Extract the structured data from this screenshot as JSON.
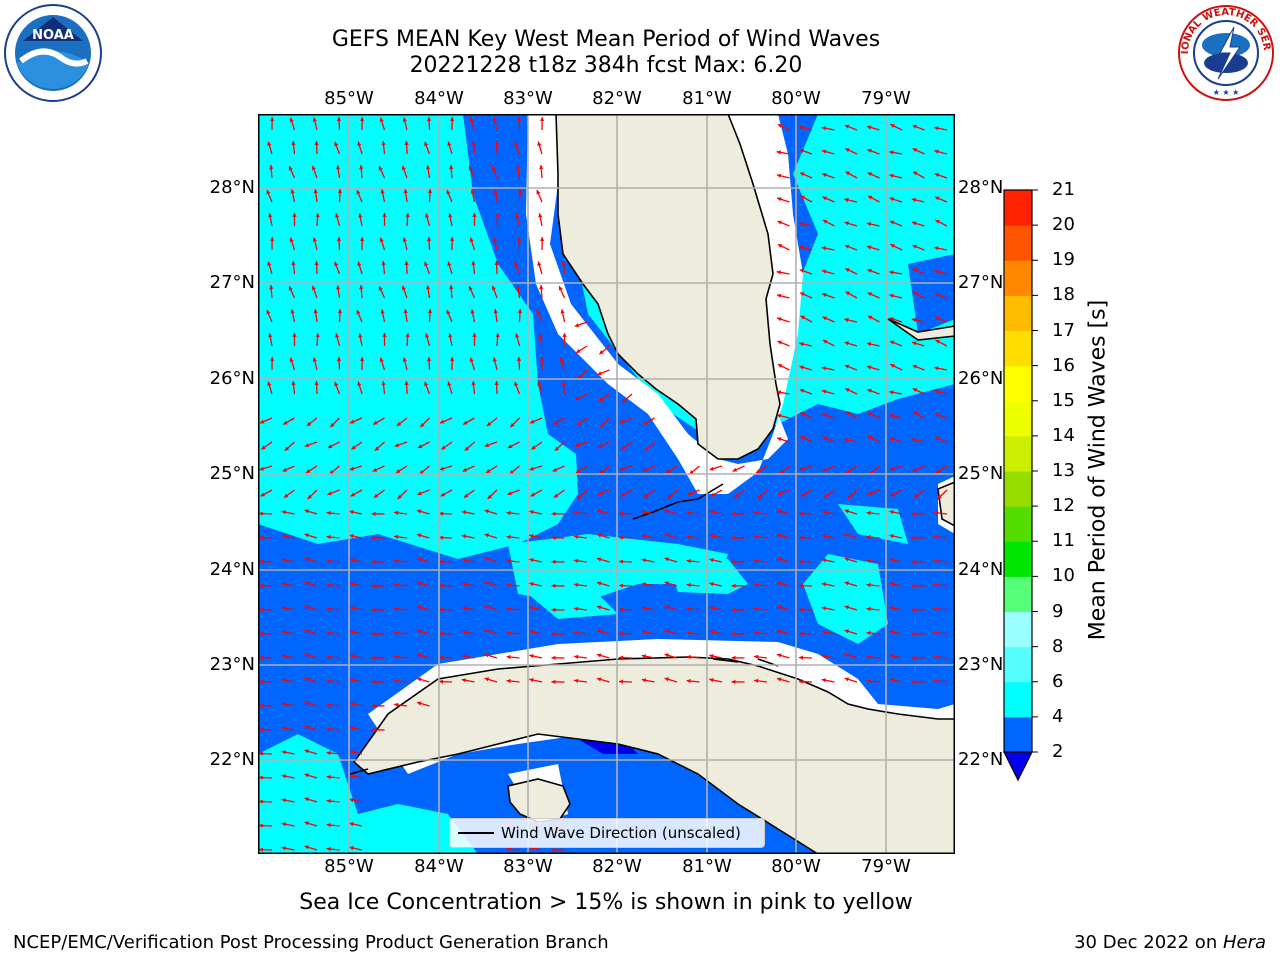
{
  "title_line1": "GEFS MEAN Key West Mean Period of Wind Waves",
  "title_line2": "20221228 t18z 384h fcst   Max: 6.20",
  "lon_ticks": [
    "85°W",
    "84°W",
    "83°W",
    "82°W",
    "81°W",
    "80°W",
    "79°W"
  ],
  "lat_ticks": [
    "28°N",
    "27°N",
    "26°N",
    "25°N",
    "24°N",
    "23°N",
    "22°N"
  ],
  "colorbar": {
    "label": "Mean Period of Wind Waves [s]",
    "ticks": [
      "2",
      "4",
      "6",
      "8",
      "9",
      "10",
      "11",
      "12",
      "13",
      "14",
      "15",
      "16",
      "17",
      "18",
      "19",
      "20",
      "21"
    ],
    "colors": [
      "#0066ff",
      "#00ffff",
      "#55ffff",
      "#99ffff",
      "#55ff77",
      "#00e600",
      "#55dd00",
      "#99dd00",
      "#ccee00",
      "#eeff00",
      "#ffff00",
      "#ffdd00",
      "#ffbb00",
      "#ff8800",
      "#ff5500",
      "#ff2200"
    ],
    "under_color": "#0000ee"
  },
  "legend_label": "Wind Wave Direction (unscaled)",
  "ice_note": "Sea Ice Concentration > 15% is shown in pink to yellow",
  "credit": "NCEP/EMC/Verification Post Processing Product Generation Branch",
  "date_prefix": "30 Dec 2022 on ",
  "date_host": "Hera",
  "logos": {
    "left_text": "NOAA",
    "right_text": "NATIONAL WEATHER SERVICE"
  },
  "colors": {
    "land": "#eeecdc",
    "wave_4_6": "#00ffff",
    "wave_2_4": "#0066ff",
    "wave_under_2": "#0000ee",
    "arrow": "#ff0000",
    "grid": "#b0b0b0"
  }
}
